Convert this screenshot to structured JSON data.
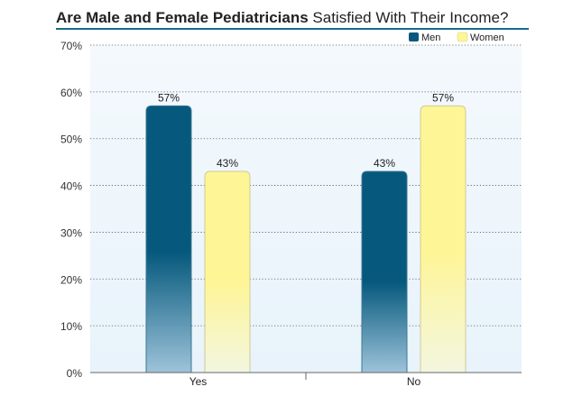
{
  "chart_data": {
    "type": "bar",
    "title_bold": "Are Male and Female Pediatricians",
    "title_rest": " Satisfied With Their Income?",
    "categories": [
      "Yes",
      "No"
    ],
    "series": [
      {
        "name": "Men",
        "values": [
          57,
          43
        ],
        "labels": [
          "57%",
          "43%"
        ]
      },
      {
        "name": "Women",
        "values": [
          43,
          57
        ],
        "labels": [
          "43%",
          "57%"
        ]
      }
    ],
    "ylim": [
      0,
      70
    ],
    "yticks": [
      0,
      10,
      20,
      30,
      40,
      50,
      60,
      70
    ],
    "ytick_labels": [
      "0%",
      "10%",
      "20%",
      "30%",
      "40%",
      "50%",
      "60%",
      "70%"
    ],
    "grid": true,
    "legend_position": "top-right",
    "colors": {
      "men_top": "#06597d",
      "men_bottom": "#9dc3d9",
      "women_top": "#fef597",
      "women_bottom": "#f3f6e0",
      "plot_bg": "#eef6fc",
      "title_rule": "#1b6a8a"
    }
  }
}
